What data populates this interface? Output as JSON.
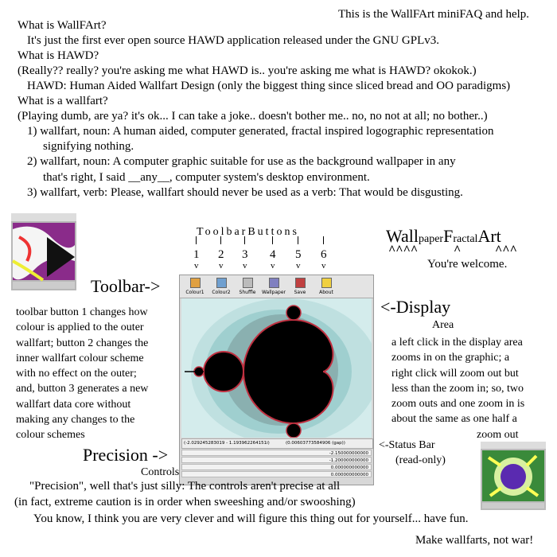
{
  "header": {
    "title": "This is the WallFArt miniFAQ and help."
  },
  "faq": {
    "lines": [
      "What is WallFArt?",
      "It's just the first ever open source HAWD application released under the GNU GPLv3.",
      "What is HAWD?",
      "(Really?? really? you're asking me what HAWD is.. you're asking me what is HAWD? okokok.)",
      "HAWD: Human Aided Wallfart Design (only the biggest thing since sliced bread and OO paradigms)",
      "What is a wallfart?",
      "(Playing dumb, are ya? it's ok... I can take a joke.. doesn't bother me..  no, no not at all; no bother..)",
      "1) wallfart, noun: A human aided, computer generated, fractal inspired logographic representation",
      "signifying nothing.",
      "2) wallfart, noun: A computer graphic suitable for use as the background wallpaper in any",
      "that's right, I said __any__, computer system's desktop environment.",
      "3) wallfart, verb: Please, wallfart should never be used as a verb: That would be disgusting."
    ]
  },
  "toolbar_buttons": {
    "title": "ToolbarButtons",
    "numbers": [
      "1",
      "2",
      "3",
      "4",
      "5",
      "6"
    ],
    "pointer": "v"
  },
  "logo": {
    "parts": [
      "Wall",
      "paper",
      "F",
      "ractal",
      "Art"
    ],
    "carets": [
      "^^^^",
      "^",
      "^^^"
    ],
    "tagline": "You're welcome."
  },
  "toolbar_callout": {
    "label": "Toolbar->",
    "description": [
      "toolbar button 1 changes how",
      "colour is applied to the outer",
      "wallfart; button 2 changes the",
      "inner wallfart colour scheme",
      "with no effect on the outer;",
      "and, button 3 generates a new",
      "wallfart data core without",
      "making any changes to the",
      "colour schemes"
    ]
  },
  "display_callout": {
    "label": "<-Display",
    "sublabel": "Area",
    "description": [
      "a left click in the display area",
      "zooms in on the graphic; a",
      "right click will zoom out but",
      "less than the zoom in; so, two",
      "zoom outs and one zoom in is",
      "about the same as one half a",
      "zoom out"
    ]
  },
  "status_callout": {
    "label": "<-Status Bar",
    "sublabel": "(read-only)"
  },
  "precision_callout": {
    "label": "Precision ->",
    "sublabel": "Controls"
  },
  "screenshot": {
    "buttons": [
      "Colour1",
      "Colour2",
      "Shuffle",
      "Wallpaper",
      "Save",
      "About"
    ],
    "status": [
      "(-2.029245283019 - 1.193962264151i)",
      "(0.00603773584906 (gap))"
    ],
    "controls": [
      "-2.150000000000",
      "-1.200000000000",
      "0.000000000000",
      "0.000000000000"
    ]
  },
  "footer": {
    "precision_note": [
      "\"Precision\", well that's just silly: The controls aren't precise at all",
      "(in fact, extreme caution is in order when sweeshing and/or swooshing)"
    ],
    "closing": "You know, I think you are very clever and will figure this thing out for yourself... have fun.",
    "signoff": "Make wallfarts, not war!"
  }
}
